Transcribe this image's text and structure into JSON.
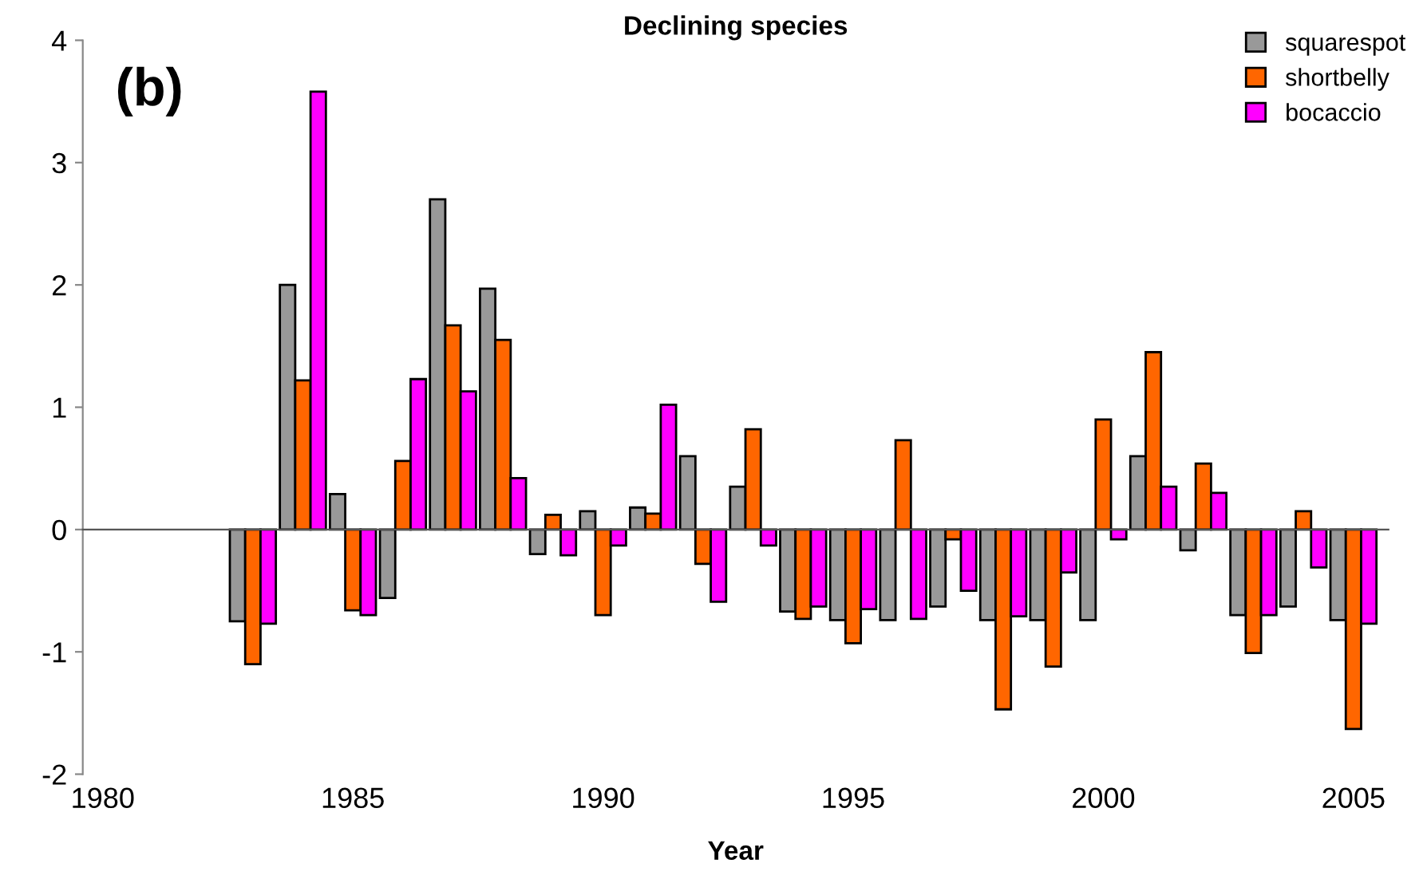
{
  "chart_data": {
    "type": "bar",
    "title": "Declining species",
    "xlabel": "Year",
    "annotations": [
      "(b)"
    ],
    "x": [
      1983,
      1984,
      1985,
      1986,
      1987,
      1988,
      1989,
      1990,
      1991,
      1992,
      1993,
      1994,
      1995,
      1996,
      1997,
      1998,
      1999,
      2000,
      2001,
      2002,
      2003,
      2004,
      2005
    ],
    "series": [
      {
        "name": "squarespot",
        "color": "#999999",
        "values": [
          -0.75,
          2.0,
          0.29,
          -0.56,
          2.7,
          1.97,
          -0.2,
          0.15,
          0.18,
          0.6,
          0.35,
          -0.67,
          -0.74,
          -0.74,
          -0.63,
          -0.74,
          -0.74,
          -0.74,
          0.6,
          -0.17,
          -0.7,
          -0.63,
          -0.74
        ]
      },
      {
        "name": "shortbelly",
        "color": "#ff6600",
        "values": [
          -1.1,
          1.22,
          -0.66,
          0.56,
          1.67,
          1.55,
          0.12,
          -0.7,
          0.13,
          -0.28,
          0.82,
          -0.73,
          -0.93,
          0.73,
          -0.08,
          -1.47,
          -1.12,
          0.9,
          1.45,
          0.54,
          -1.01,
          0.15,
          -1.63
        ]
      },
      {
        "name": "bocaccio",
        "color": "#ff00ff",
        "values": [
          -0.77,
          3.58,
          -0.7,
          1.23,
          1.13,
          0.42,
          -0.21,
          -0.13,
          1.02,
          -0.59,
          -0.13,
          -0.63,
          -0.65,
          -0.73,
          -0.5,
          -0.71,
          -0.35,
          -0.08,
          0.35,
          0.3,
          -0.7,
          -0.31,
          -0.77
        ]
      }
    ],
    "xlim": [
      1979.6,
      2005.7
    ],
    "xticks": [
      1980,
      1985,
      1990,
      1995,
      2000,
      2005
    ],
    "ylim": [
      -2,
      4
    ],
    "yticks": [
      -2,
      -1,
      0,
      1,
      2,
      3,
      4
    ],
    "legend": "top right"
  }
}
